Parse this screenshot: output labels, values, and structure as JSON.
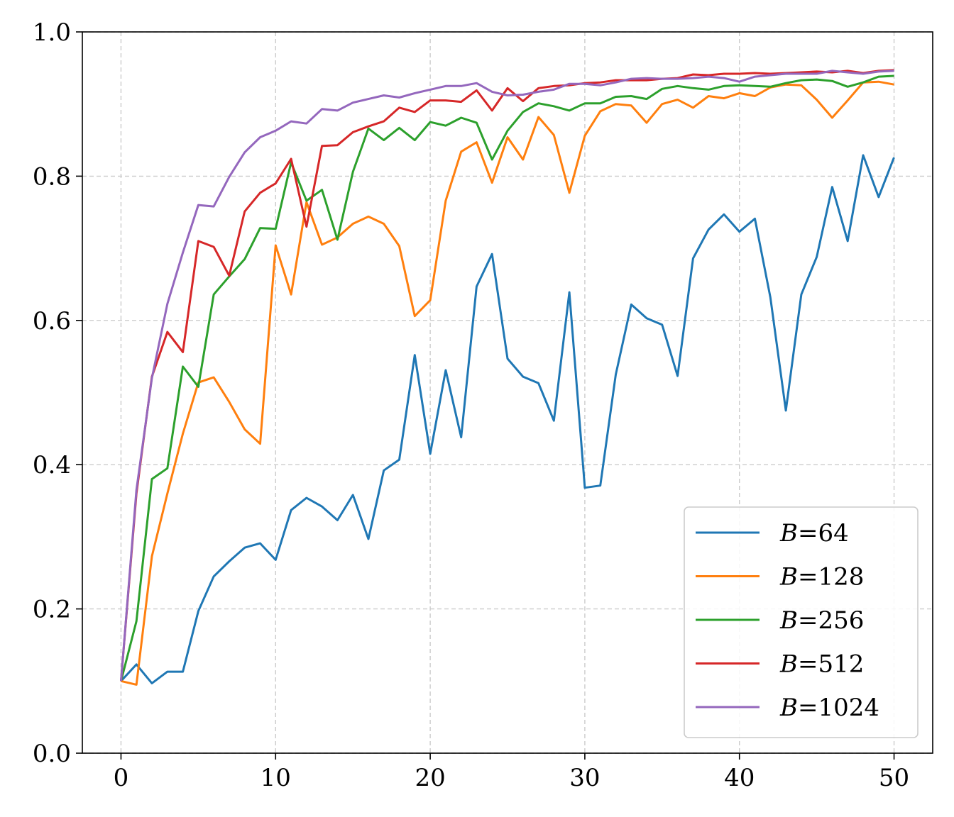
{
  "chart_data": {
    "type": "line",
    "title": "",
    "xlabel": "",
    "ylabel": "",
    "xlim": [
      -2.5,
      52.5
    ],
    "ylim": [
      0.0,
      1.0
    ],
    "xticks": [
      "0",
      "10",
      "20",
      "30",
      "40",
      "50"
    ],
    "yticks": [
      "0.0",
      "0.2",
      "0.4",
      "0.6",
      "0.8",
      "1.0"
    ],
    "grid": true,
    "legend_position": "lower-right",
    "x": [
      0,
      1,
      2,
      3,
      4,
      5,
      6,
      7,
      8,
      9,
      10,
      11,
      12,
      13,
      14,
      15,
      16,
      17,
      18,
      19,
      20,
      21,
      22,
      23,
      24,
      25,
      26,
      27,
      28,
      29,
      30,
      31,
      32,
      33,
      34,
      35,
      36,
      37,
      38,
      39,
      40,
      41,
      42,
      43,
      44,
      45,
      46,
      47,
      48,
      49,
      50
    ],
    "series": [
      {
        "name": "B=64",
        "name_prefix": "B",
        "name_suffix": "=64",
        "color": "#1f77b4",
        "values": [
          0.1,
          0.123,
          0.097,
          0.113,
          0.113,
          0.197,
          0.245,
          0.266,
          0.285,
          0.291,
          0.268,
          0.337,
          0.354,
          0.342,
          0.323,
          0.358,
          0.297,
          0.392,
          0.407,
          0.552,
          0.415,
          0.531,
          0.438,
          0.647,
          0.692,
          0.547,
          0.522,
          0.513,
          0.461,
          0.639,
          0.368,
          0.371,
          0.525,
          0.622,
          0.603,
          0.594,
          0.523,
          0.686,
          0.726,
          0.747,
          0.723,
          0.741,
          0.632,
          0.475,
          0.636,
          0.688,
          0.785,
          0.71,
          0.829,
          0.771,
          0.826
        ]
      },
      {
        "name": "B=128",
        "name_prefix": "B",
        "name_suffix": "=128",
        "color": "#ff7f0e",
        "values": [
          0.1,
          0.095,
          0.273,
          0.36,
          0.443,
          0.514,
          0.521,
          0.487,
          0.449,
          0.429,
          0.704,
          0.636,
          0.764,
          0.705,
          0.715,
          0.734,
          0.744,
          0.734,
          0.703,
          0.606,
          0.628,
          0.766,
          0.834,
          0.847,
          0.791,
          0.854,
          0.823,
          0.882,
          0.857,
          0.777,
          0.856,
          0.89,
          0.9,
          0.898,
          0.874,
          0.9,
          0.906,
          0.895,
          0.911,
          0.908,
          0.915,
          0.911,
          0.923,
          0.927,
          0.926,
          0.906,
          0.881,
          0.905,
          0.93,
          0.931,
          0.927
        ]
      },
      {
        "name": "B=256",
        "name_prefix": "B",
        "name_suffix": "=256",
        "color": "#2ca02c",
        "values": [
          0.1,
          0.183,
          0.38,
          0.395,
          0.536,
          0.508,
          0.636,
          0.661,
          0.685,
          0.728,
          0.727,
          0.819,
          0.766,
          0.781,
          0.712,
          0.806,
          0.866,
          0.85,
          0.867,
          0.85,
          0.875,
          0.87,
          0.881,
          0.874,
          0.823,
          0.863,
          0.889,
          0.901,
          0.897,
          0.891,
          0.901,
          0.901,
          0.91,
          0.911,
          0.907,
          0.921,
          0.925,
          0.922,
          0.92,
          0.925,
          0.926,
          0.925,
          0.924,
          0.929,
          0.933,
          0.934,
          0.932,
          0.924,
          0.93,
          0.938,
          0.939
        ]
      },
      {
        "name": "B=512",
        "name_prefix": "B",
        "name_suffix": "=512",
        "color": "#d62728",
        "values": [
          0.1,
          0.36,
          0.522,
          0.584,
          0.556,
          0.71,
          0.702,
          0.662,
          0.751,
          0.777,
          0.79,
          0.824,
          0.73,
          0.842,
          0.843,
          0.861,
          0.869,
          0.876,
          0.895,
          0.889,
          0.905,
          0.905,
          0.903,
          0.919,
          0.891,
          0.922,
          0.904,
          0.922,
          0.925,
          0.926,
          0.929,
          0.93,
          0.933,
          0.933,
          0.933,
          0.935,
          0.936,
          0.941,
          0.94,
          0.942,
          0.942,
          0.943,
          0.942,
          0.943,
          0.944,
          0.945,
          0.944,
          0.946,
          0.943,
          0.946,
          0.947
        ]
      },
      {
        "name": "B=1024",
        "name_prefix": "B",
        "name_suffix": "=1024",
        "color": "#9467bd",
        "values": [
          0.1,
          0.365,
          0.52,
          0.623,
          0.694,
          0.76,
          0.758,
          0.799,
          0.833,
          0.854,
          0.863,
          0.876,
          0.873,
          0.893,
          0.891,
          0.902,
          0.907,
          0.912,
          0.909,
          0.915,
          0.92,
          0.925,
          0.925,
          0.929,
          0.917,
          0.912,
          0.913,
          0.917,
          0.92,
          0.928,
          0.928,
          0.926,
          0.93,
          0.935,
          0.936,
          0.935,
          0.935,
          0.936,
          0.938,
          0.936,
          0.931,
          0.938,
          0.94,
          0.942,
          0.942,
          0.942,
          0.946,
          0.944,
          0.942,
          0.945,
          0.946
        ]
      }
    ]
  }
}
